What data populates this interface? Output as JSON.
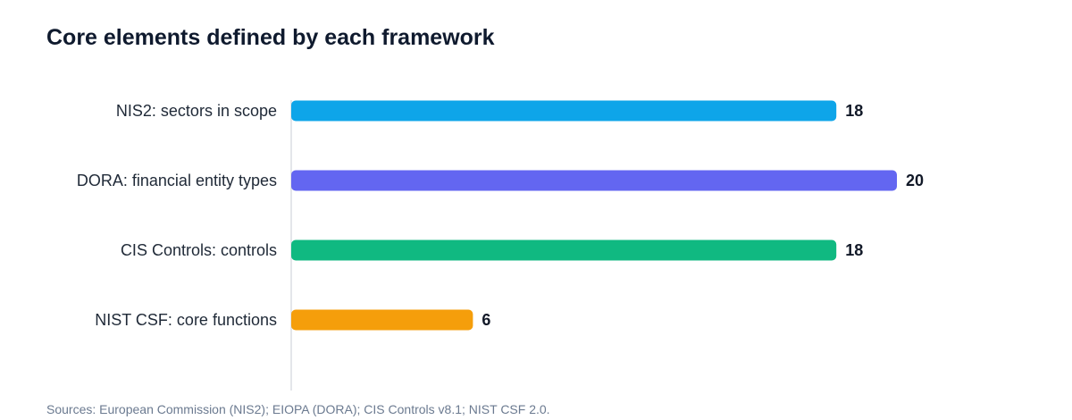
{
  "chart_data": {
    "type": "bar",
    "orientation": "horizontal",
    "title": "Core elements defined by each framework",
    "categories": [
      "NIS2: sectors in scope",
      "DORA: financial entity types",
      "CIS Controls: controls",
      "NIST CSF: core functions"
    ],
    "values": [
      18,
      20,
      18,
      6
    ],
    "colors": [
      "#0ea5e9",
      "#6366f1",
      "#10b981",
      "#f59e0b"
    ],
    "xlim": [
      0,
      20
    ],
    "grid": false,
    "legend": "none",
    "data_labels": true
  },
  "footer": {
    "source": "Sources: European Commission (NIS2); EIOPA (DORA); CIS Controls v8.1; NIST CSF 2.0."
  }
}
